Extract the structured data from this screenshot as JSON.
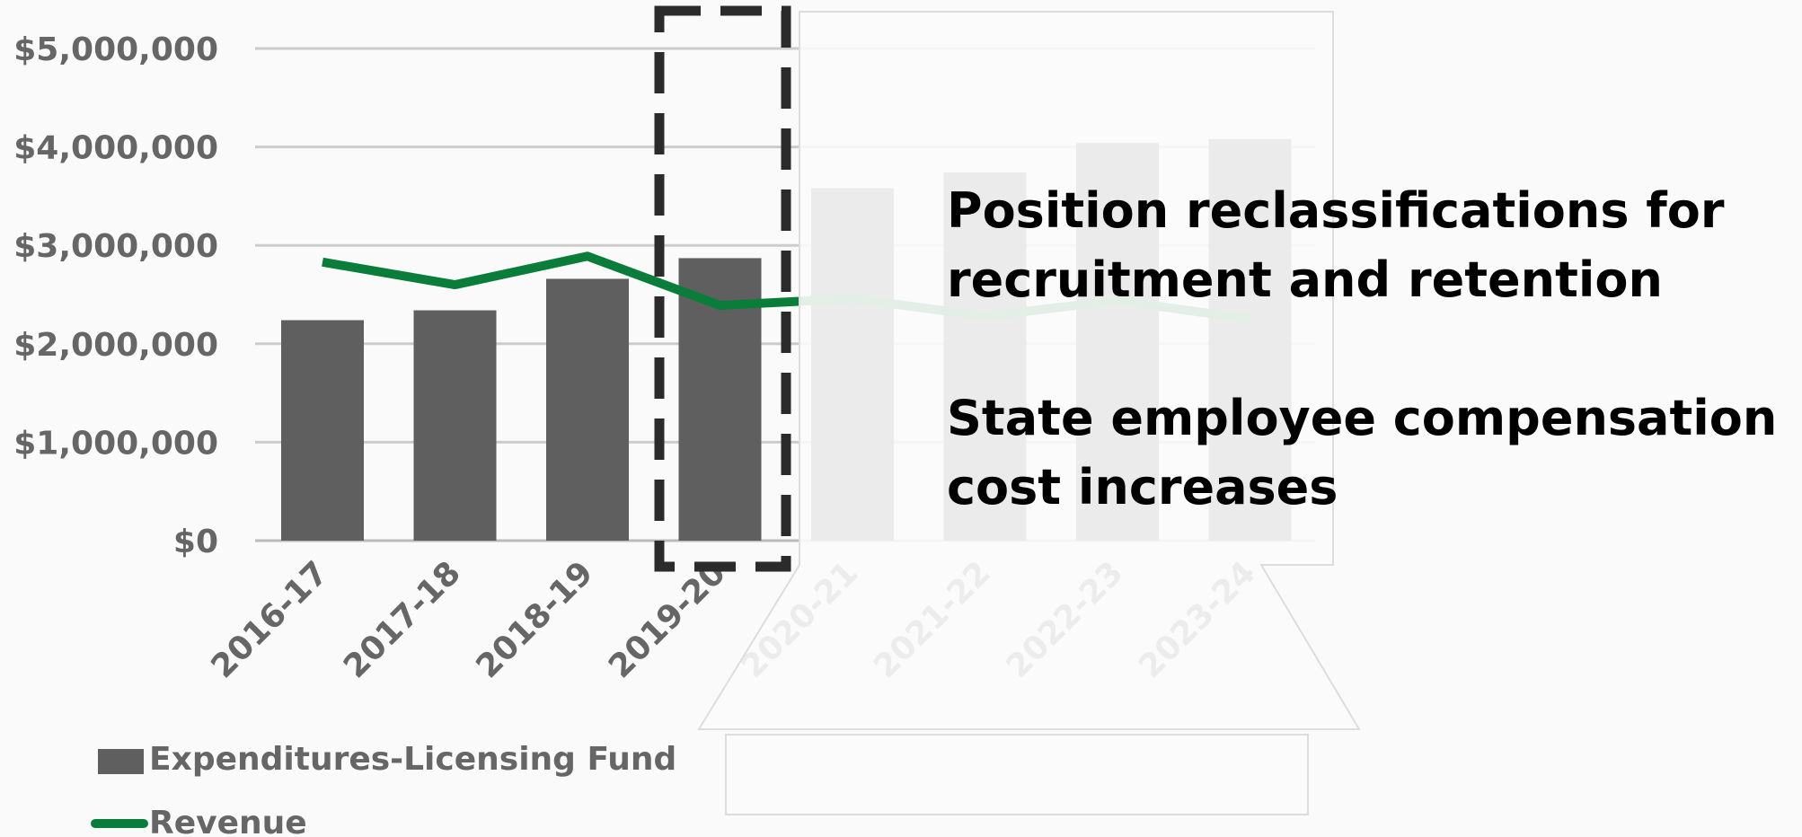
{
  "chart_data": {
    "type": "bar-line",
    "categories": [
      "2016-17",
      "2017-18",
      "2018-19",
      "2019-20",
      "2020-21",
      "2021-22",
      "2022-23",
      "2023-24"
    ],
    "series": [
      {
        "name": "Expenditures-Licensing Fund",
        "type": "bar",
        "color": "#5f5f5f",
        "values": [
          2240000,
          2340000,
          2660000,
          2870000,
          3580000,
          3740000,
          4040000,
          4080000
        ]
      },
      {
        "name": "Revenue",
        "type": "line",
        "color": "#0a7d3a",
        "values": [
          2830000,
          2600000,
          2890000,
          2390000,
          2460000,
          2280000,
          2440000,
          2250000
        ]
      }
    ],
    "ylim": [
      0,
      5000000
    ],
    "yticks": [
      {
        "value": 0,
        "label": "$0"
      },
      {
        "value": 1000000,
        "label": "$1,000,000"
      },
      {
        "value": 2000000,
        "label": "$2,000,000"
      },
      {
        "value": 3000000,
        "label": "$3,000,000"
      },
      {
        "value": 4000000,
        "label": "$4,000,000"
      },
      {
        "value": 5000000,
        "label": "$5,000,000"
      }
    ],
    "grid": true,
    "annotations": [
      "Position reclassifications for recruitment and retention",
      "State employee compensation cost increases"
    ]
  }
}
